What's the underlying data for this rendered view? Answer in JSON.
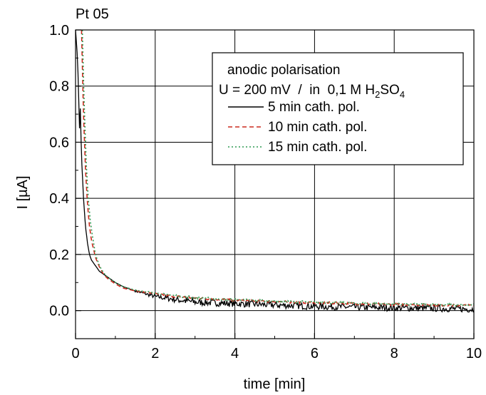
{
  "chart_data": {
    "type": "line",
    "title": "Pt 05",
    "xlabel": "time [min]",
    "ylabel": "I [µA]",
    "xlim": [
      0,
      10
    ],
    "ylim": [
      -0.1,
      1.0
    ],
    "xticks": [
      0,
      2,
      4,
      6,
      8,
      10
    ],
    "yticks": [
      0.0,
      0.2,
      0.4,
      0.6,
      0.8,
      1.0
    ],
    "xtick_labels": [
      "0",
      "2",
      "4",
      "6",
      "8",
      "10"
    ],
    "ytick_labels": [
      "0.0",
      "0.2",
      "0.4",
      "0.6",
      "0.8",
      "1.0"
    ],
    "grid": true,
    "legend": {
      "placement": "top-right",
      "line1": "anodic polarisation",
      "line2_pre": "U = 200 mV  /  in  0,1 M H",
      "line2_sub1": "2",
      "line2_mid": "SO",
      "line2_sub2": "4"
    },
    "series": [
      {
        "name": "5 min cath. pol.",
        "color": "#000000",
        "dash": "solid",
        "noise": 0.012,
        "x": [
          0.0,
          0.05,
          0.08,
          0.1,
          0.12,
          0.15,
          0.2,
          0.25,
          0.3,
          0.35,
          0.4,
          0.5,
          0.6,
          0.8,
          1.0,
          1.2,
          1.5,
          2.0,
          2.5,
          3.0,
          4.0,
          5.0,
          6.0,
          7.0,
          8.0,
          9.0,
          10.0
        ],
        "y": [
          1.0,
          0.9,
          0.75,
          0.65,
          0.72,
          0.55,
          0.4,
          0.3,
          0.24,
          0.2,
          0.18,
          0.16,
          0.14,
          0.12,
          0.1,
          0.085,
          0.07,
          0.05,
          0.04,
          0.03,
          0.025,
          0.02,
          0.015,
          0.012,
          0.01,
          0.008,
          0.005
        ]
      },
      {
        "name": "10 min cath. pol.",
        "color": "#cc2a1e",
        "dash": "dashed",
        "noise": 0.004,
        "x": [
          0.15,
          0.2,
          0.25,
          0.3,
          0.35,
          0.4,
          0.5,
          0.6,
          0.7,
          0.8,
          1.0,
          1.2,
          1.5,
          2.0,
          2.5,
          3.0,
          4.0,
          5.0,
          6.0,
          7.0,
          8.0,
          9.0,
          10.0
        ],
        "y": [
          1.0,
          0.7,
          0.5,
          0.38,
          0.3,
          0.25,
          0.19,
          0.155,
          0.13,
          0.115,
          0.095,
          0.08,
          0.07,
          0.06,
          0.05,
          0.045,
          0.037,
          0.032,
          0.028,
          0.025,
          0.022,
          0.02,
          0.018
        ]
      },
      {
        "name": "15 min cath. pol.",
        "color": "#2e9a52",
        "dash": "dotted",
        "noise": 0.004,
        "x": [
          0.17,
          0.22,
          0.27,
          0.32,
          0.37,
          0.42,
          0.5,
          0.6,
          0.7,
          0.8,
          1.0,
          1.2,
          1.5,
          2.0,
          2.5,
          3.0,
          4.0,
          5.0,
          6.0,
          7.0,
          8.0,
          9.0,
          10.0
        ],
        "y": [
          1.0,
          0.72,
          0.52,
          0.4,
          0.32,
          0.27,
          0.2,
          0.16,
          0.135,
          0.12,
          0.1,
          0.085,
          0.073,
          0.063,
          0.053,
          0.047,
          0.039,
          0.034,
          0.03,
          0.026,
          0.023,
          0.021,
          0.02
        ]
      }
    ]
  }
}
